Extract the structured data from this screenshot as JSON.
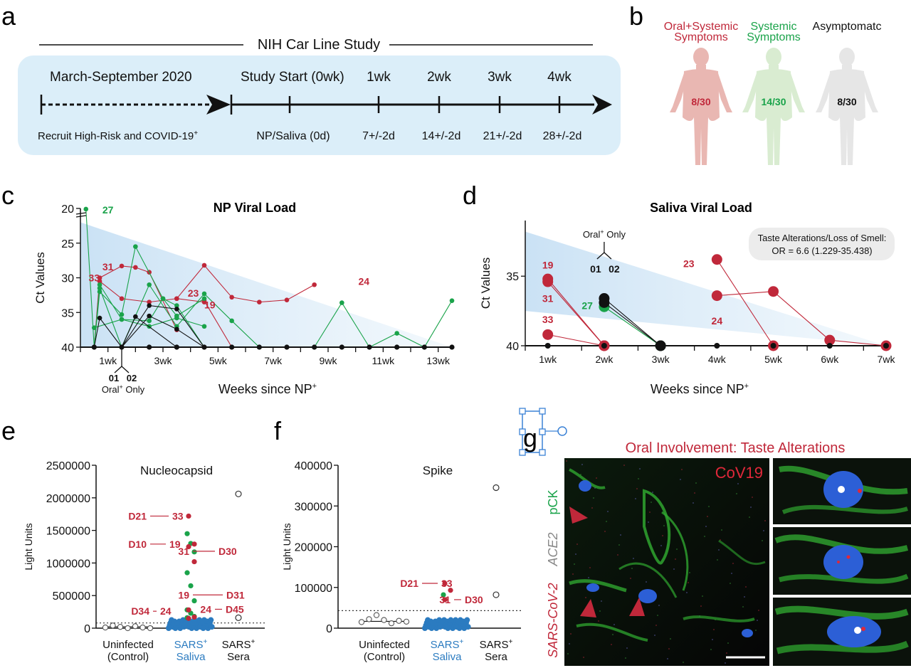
{
  "panels": {
    "a": "a",
    "b": "b",
    "c": "c",
    "d": "d",
    "e": "e",
    "f": "f",
    "g": "g"
  },
  "timeline": {
    "title": "NIH Car Line Study",
    "period": "March-September 2020",
    "start": "Study Start (0wk)",
    "weeks": [
      "1wk",
      "2wk",
      "3wk",
      "4wk"
    ],
    "recruit": "Recruit High-Risk and COVID-19",
    "recruit_sup": "+",
    "bottom": [
      "NP/Saliva (0d)",
      "7+/-2d",
      "14+/-2d",
      "21+/-2d",
      "28+/-2d"
    ]
  },
  "symptoms": [
    {
      "l1": "Oral+Systemic",
      "l2": "Symptoms",
      "count": "8/30",
      "color": "#c0283a"
    },
    {
      "l1": "Systemic",
      "l2": "Symptoms",
      "count": "14/30",
      "color": "#1aa34a"
    },
    {
      "l1": "Asymptomatc",
      "l2": "",
      "count": "8/30",
      "color": "#111111"
    }
  ],
  "colors": {
    "red": "#c0283a",
    "green": "#1aa34a",
    "black": "#111111",
    "blue": "#2b7bc0",
    "band": "#cfe6f6"
  },
  "chart_data": [
    {
      "type": "line",
      "title": "NP Viral Load",
      "ylabel": "Ct Values",
      "xlabel": "Weeks since NP",
      "xlabel_sup": "+",
      "ylim": [
        20,
        40
      ],
      "yticks": [
        "20",
        "25",
        "30",
        "35",
        "40"
      ],
      "xticks": [
        "1wk",
        "3wk",
        "5wk",
        "7wk",
        "9wk",
        "11wk",
        "13wk"
      ],
      "annotations": {
        "oral_only": "Oral",
        "oral_only_rest": " Only",
        "ids": [
          "01",
          "02"
        ]
      },
      "point_labels": [
        {
          "text": "27",
          "color": "green",
          "x": 0.5,
          "y": 20.2
        },
        {
          "text": "31",
          "color": "red",
          "x": 0.5,
          "y": 28.4
        },
        {
          "text": "33",
          "color": "red",
          "x": 0.0,
          "y": 30.0
        },
        {
          "text": "23",
          "color": "red",
          "x": 3.6,
          "y": 32.2
        },
        {
          "text": "19",
          "color": "red",
          "x": 4.2,
          "y": 33.9
        },
        {
          "text": "24",
          "color": "red",
          "x": 9.8,
          "y": 30.5
        }
      ],
      "series": [
        {
          "color": "red",
          "points": [
            [
              0,
              40
            ],
            [
              0.2,
              30.5
            ],
            [
              1,
              33
            ],
            [
              2,
              33.5
            ],
            [
              3,
              33
            ],
            [
              4,
              33.5
            ]
          ]
        },
        {
          "color": "red",
          "points": [
            [
              0,
              40
            ],
            [
              0.2,
              30
            ],
            [
              1,
              28.3
            ],
            [
              1.5,
              28.5
            ],
            [
              2,
              29.2
            ],
            [
              3,
              37.5
            ]
          ]
        },
        {
          "color": "red",
          "points": [
            [
              3,
              33
            ],
            [
              4,
              28.2
            ],
            [
              5,
              32.8
            ],
            [
              6,
              33.5
            ],
            [
              7,
              33.2
            ],
            [
              8,
              31
            ]
          ]
        },
        {
          "color": "red",
          "points": [
            [
              4,
              33.3
            ],
            [
              5,
              40
            ]
          ]
        },
        {
          "color": "green",
          "points": [
            [
              -0.3,
              20.1
            ],
            [
              0,
              40
            ],
            [
              0.2,
              31
            ],
            [
              1,
              36
            ],
            [
              2,
              36.2
            ],
            [
              2.5,
              33
            ],
            [
              3,
              35.5
            ],
            [
              4,
              33
            ]
          ]
        },
        {
          "color": "green",
          "points": [
            [
              0,
              40
            ],
            [
              0.2,
              32
            ],
            [
              1,
              35.3
            ],
            [
              1.5,
              25.5
            ],
            [
              2.5,
              33
            ],
            [
              3,
              34
            ],
            [
              4,
              40
            ]
          ]
        },
        {
          "color": "green",
          "points": [
            [
              0.2,
              31.5
            ],
            [
              1,
              40
            ],
            [
              2,
              31
            ],
            [
              3,
              37
            ],
            [
              4,
              32.3
            ],
            [
              5,
              36.2
            ],
            [
              6,
              40
            ]
          ]
        },
        {
          "color": "green",
          "points": [
            [
              0,
              37.2
            ],
            [
              1,
              36
            ],
            [
              2,
              37
            ],
            [
              3,
              35.8
            ],
            [
              4,
              37
            ]
          ]
        },
        {
          "color": "green",
          "points": [
            [
              8,
              40
            ],
            [
              9,
              33.6
            ],
            [
              10,
              40
            ],
            [
              11,
              38
            ],
            [
              12,
              40
            ],
            [
              13,
              33.3
            ]
          ]
        },
        {
          "color": "black",
          "points": [
            [
              0,
              40
            ],
            [
              0.2,
              35.8
            ],
            [
              1,
              40
            ],
            [
              1.5,
              35.6
            ],
            [
              3,
              40
            ],
            [
              4,
              40
            ]
          ]
        },
        {
          "color": "black",
          "points": [
            [
              1,
              40
            ],
            [
              2,
              34
            ],
            [
              3,
              34.5
            ],
            [
              4,
              40
            ]
          ]
        },
        {
          "color": "black",
          "points": [
            [
              1,
              40
            ],
            [
              2,
              35.5
            ],
            [
              3,
              37.4
            ],
            [
              4,
              40
            ]
          ]
        }
      ]
    },
    {
      "type": "line",
      "title": "Saliva Viral Load",
      "ylabel": "Ct Values",
      "xlabel": "Weeks since NP",
      "xlabel_sup": "+",
      "ylim": [
        31,
        40
      ],
      "yticks": [
        "35",
        "40"
      ],
      "xticks": [
        "1wk",
        "2wk",
        "3wk",
        "4wk",
        "5wk",
        "6wk",
        "7wk"
      ],
      "stat_box": {
        "line1": "Taste Alterations/Loss of Smell:",
        "line2": "OR = 6.6 (1.229-35.438)"
      },
      "annotations": {
        "oral_only": "Oral",
        "oral_only_rest": " Only",
        "ids": [
          "01",
          "02"
        ]
      },
      "point_labels": [
        {
          "text": "19",
          "color": "red",
          "x": 1,
          "y": 34.2
        },
        {
          "text": "31",
          "color": "red",
          "x": 1,
          "y": 36.6
        },
        {
          "text": "27",
          "color": "green",
          "x": 1.7,
          "y": 37.1
        },
        {
          "text": "33",
          "color": "red",
          "x": 1,
          "y": 38.1
        },
        {
          "text": "23",
          "color": "red",
          "x": 3.5,
          "y": 34.1
        },
        {
          "text": "24",
          "color": "red",
          "x": 4,
          "y": 38.2
        }
      ],
      "series": [
        {
          "color": "red",
          "points": [
            [
              1,
              35.2
            ],
            [
              2,
              40
            ]
          ]
        },
        {
          "color": "red",
          "points": [
            [
              1,
              35.4
            ],
            [
              2,
              40
            ]
          ]
        },
        {
          "color": "red",
          "points": [
            [
              1,
              39.2
            ],
            [
              2,
              40
            ]
          ]
        },
        {
          "color": "red",
          "points": [
            [
              4,
              33.8
            ],
            [
              5,
              40
            ]
          ]
        },
        {
          "color": "red",
          "points": [
            [
              4,
              36.4
            ],
            [
              5,
              36.1
            ],
            [
              6,
              39.6
            ],
            [
              7,
              40
            ]
          ]
        },
        {
          "color": "green",
          "points": [
            [
              2,
              37.2
            ],
            [
              3,
              40
            ]
          ]
        },
        {
          "color": "black",
          "points": [
            [
              2,
              36.6
            ],
            [
              3,
              40
            ]
          ]
        },
        {
          "color": "black",
          "points": [
            [
              2,
              36.9
            ],
            [
              3,
              40
            ]
          ]
        }
      ]
    },
    {
      "type": "scatter",
      "title": "Nucleocapsid",
      "ylabel": "Light Units",
      "ylim": [
        0,
        2500000
      ],
      "yticks": [
        "0",
        "500000",
        "1000000",
        "1500000",
        "2000000",
        "2500000"
      ],
      "categories": [
        "Uninfected",
        "SARS",
        "SARS"
      ],
      "categories_line2": [
        "(Control)",
        "Saliva",
        "Sera"
      ],
      "threshold": 80000,
      "annotations": [
        {
          "left": "D21",
          "right": "33",
          "y": 1720000
        },
        {
          "left": "D10",
          "right": "19",
          "y": 1290000
        },
        {
          "left": "31",
          "right": "D30",
          "y": 1180000
        },
        {
          "left": "19",
          "right": "D31",
          "y": 510000
        },
        {
          "left": "D34",
          "right": "24",
          "y": 260000
        },
        {
          "left": "24",
          "right": "D45",
          "y": 290000
        }
      ],
      "control_values": [
        10000,
        40000,
        20000,
        0,
        30000,
        10000,
        0
      ],
      "sera_values": [
        2060000,
        160000
      ],
      "saliva_red": [
        1720000,
        1290000,
        1250000,
        1020000,
        280000,
        170000,
        150000
      ],
      "saliva_green": [
        1450000,
        1300000,
        1170000,
        850000,
        650000,
        420000,
        280000,
        230000,
        180000,
        160000
      ]
    },
    {
      "type": "scatter",
      "title": "Spike",
      "ylabel": "Light Units",
      "ylim": [
        0,
        400000
      ],
      "yticks": [
        "0",
        "100000",
        "200000",
        "300000",
        "400000"
      ],
      "categories": [
        "Uninfected",
        "SARS",
        "SARS"
      ],
      "categories_line2": [
        "(Control)",
        "Saliva",
        "Sera"
      ],
      "threshold": 43000,
      "annotations": [
        {
          "left": "D21",
          "right": "33",
          "y": 110000
        },
        {
          "left": "31",
          "right": "D30",
          "y": 70000
        }
      ],
      "control_values": [
        15000,
        22000,
        32000,
        20000,
        12000,
        18000,
        16000
      ],
      "sera_values": [
        345000,
        82000
      ],
      "saliva_red": [
        110000,
        93000,
        70000
      ],
      "saliva_green": [
        82000
      ]
    }
  ],
  "micrograph": {
    "title": "Oral Involvement: Taste Alterations",
    "tag": "CoV19",
    "labels": {
      "pck": "pCK",
      "ace2": "ACE2",
      "sars": "SARS-CoV-2"
    }
  }
}
